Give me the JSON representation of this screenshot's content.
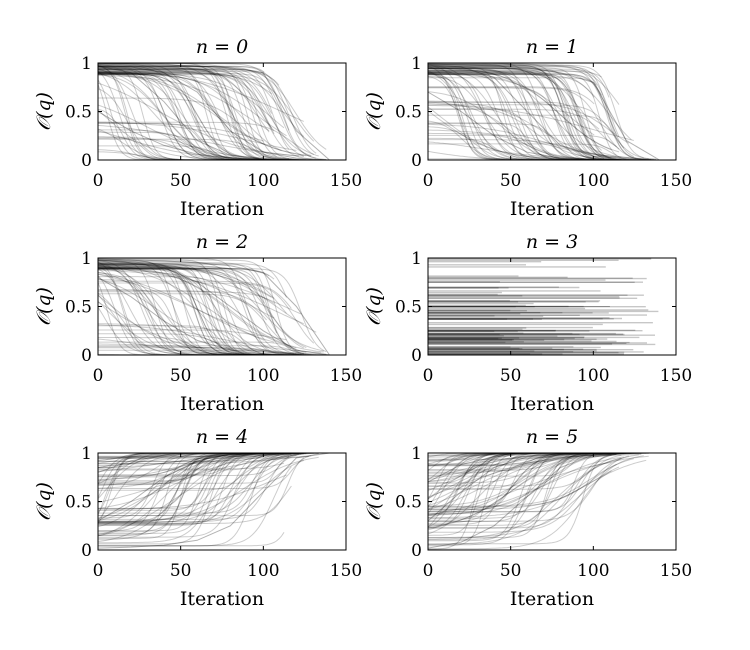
{
  "chart_data": [
    {
      "type": "line",
      "title": "n = 0",
      "xlabel": "Iteration",
      "ylabel": "𝒪(q)",
      "xlim": [
        0,
        150
      ],
      "ylim": [
        0,
        1
      ],
      "xticks": [
        "0",
        "50",
        "100",
        "150"
      ],
      "yticks": [
        "0",
        "0.5",
        "1"
      ],
      "series_style": "many faint black trajectories",
      "series": [
        {
          "x": [
            0,
            20,
            40,
            60,
            80,
            100,
            120,
            140
          ],
          "values": [
            0.98,
            0.96,
            0.9,
            0.7,
            0.3,
            0.08,
            0.02,
            0.0
          ]
        },
        {
          "x": [
            0,
            20,
            40,
            60,
            80,
            100,
            120,
            140
          ],
          "values": [
            0.97,
            0.9,
            0.6,
            0.2,
            0.05,
            0.01,
            0.0,
            0.0
          ]
        },
        {
          "x": [
            0,
            20,
            40,
            60,
            80,
            100,
            120,
            140
          ],
          "values": [
            0.99,
            0.99,
            0.98,
            0.97,
            0.95,
            0.9,
            0.3,
            0.0
          ]
        },
        {
          "x": [
            0,
            20,
            40,
            60,
            80,
            100,
            120,
            140
          ],
          "values": [
            0.5,
            0.3,
            0.15,
            0.06,
            0.02,
            0.0,
            0.0,
            0.0
          ]
        }
      ]
    },
    {
      "type": "line",
      "title": "n = 1",
      "xlabel": "Iteration",
      "ylabel": "𝒪(q)",
      "xlim": [
        0,
        150
      ],
      "ylim": [
        0,
        1
      ],
      "xticks": [
        "0",
        "50",
        "100",
        "150"
      ],
      "yticks": [
        "0",
        "0.5",
        "1"
      ],
      "series_style": "many faint black trajectories",
      "series": [
        {
          "x": [
            0,
            20,
            40,
            60,
            80,
            100,
            120,
            140
          ],
          "values": [
            0.98,
            0.96,
            0.85,
            0.5,
            0.15,
            0.04,
            0.01,
            0.0
          ]
        },
        {
          "x": [
            0,
            20,
            40,
            60,
            80,
            100,
            120,
            140
          ],
          "values": [
            0.99,
            0.98,
            0.97,
            0.95,
            0.9,
            0.8,
            0.2,
            0.0
          ]
        },
        {
          "x": [
            0,
            20,
            40,
            60,
            80,
            100,
            120,
            140
          ],
          "values": [
            0.7,
            0.5,
            0.25,
            0.08,
            0.02,
            0.0,
            0.0,
            0.0
          ]
        }
      ]
    },
    {
      "type": "line",
      "title": "n = 2",
      "xlabel": "Iteration",
      "ylabel": "𝒪(q)",
      "xlim": [
        0,
        150
      ],
      "ylim": [
        0,
        1
      ],
      "xticks": [
        "0",
        "50",
        "100",
        "150"
      ],
      "yticks": [
        "0",
        "0.5",
        "1"
      ],
      "series_style": "many faint black trajectories",
      "series": [
        {
          "x": [
            0,
            20,
            40,
            60,
            80,
            100,
            120,
            140
          ],
          "values": [
            0.98,
            0.95,
            0.9,
            0.75,
            0.5,
            0.25,
            0.05,
            0.0
          ]
        },
        {
          "x": [
            0,
            20,
            40,
            60,
            80,
            100,
            120,
            140
          ],
          "values": [
            0.99,
            0.98,
            0.97,
            0.95,
            0.92,
            0.85,
            0.5,
            0.0
          ]
        },
        {
          "x": [
            0,
            20,
            40,
            60,
            80,
            100,
            120,
            140
          ],
          "values": [
            0.8,
            0.6,
            0.35,
            0.15,
            0.05,
            0.01,
            0.0,
            0.0
          ]
        }
      ]
    },
    {
      "type": "line",
      "title": "n = 3",
      "xlabel": "Iteration",
      "ylabel": "𝒪(q)",
      "xlim": [
        0,
        150
      ],
      "ylim": [
        0,
        1
      ],
      "xticks": [
        "0",
        "50",
        "100",
        "150"
      ],
      "yticks": [
        "0",
        "0.5",
        "1"
      ],
      "series_style": "many faint flat horizontal trajectories",
      "series": [
        {
          "x": [
            0,
            135
          ],
          "values": [
            0.99,
            0.99
          ]
        },
        {
          "x": [
            0,
            125
          ],
          "values": [
            0.75,
            0.75
          ]
        },
        {
          "x": [
            0,
            110
          ],
          "values": [
            0.5,
            0.5
          ]
        },
        {
          "x": [
            0,
            120
          ],
          "values": [
            0.12,
            0.12
          ]
        }
      ]
    },
    {
      "type": "line",
      "title": "n = 4",
      "xlabel": "Iteration",
      "ylabel": "𝒪(q)",
      "xlim": [
        0,
        150
      ],
      "ylim": [
        0,
        1
      ],
      "xticks": [
        "0",
        "50",
        "100",
        "150"
      ],
      "yticks": [
        "0",
        "0.5",
        "1"
      ],
      "series_style": "many faint black trajectories",
      "series": [
        {
          "x": [
            0,
            20,
            40,
            60,
            80,
            100,
            120,
            140
          ],
          "values": [
            0.8,
            0.92,
            0.97,
            0.99,
            1.0,
            1.0,
            1.0,
            1.0
          ]
        },
        {
          "x": [
            0,
            20,
            40,
            60,
            80,
            100,
            120,
            140
          ],
          "values": [
            0.02,
            0.03,
            0.05,
            0.1,
            0.25,
            0.6,
            0.95,
            1.0
          ]
        },
        {
          "x": [
            0,
            20,
            40,
            60,
            80,
            100,
            120,
            140
          ],
          "values": [
            0.3,
            0.5,
            0.75,
            0.92,
            0.99,
            1.0,
            1.0,
            1.0
          ]
        }
      ]
    },
    {
      "type": "line",
      "title": "n = 5",
      "xlabel": "Iteration",
      "ylabel": "𝒪(q)",
      "xlim": [
        0,
        150
      ],
      "ylim": [
        0,
        1
      ],
      "xticks": [
        "0",
        "50",
        "100",
        "150"
      ],
      "yticks": [
        "0",
        "0.5",
        "1"
      ],
      "series_style": "many faint black trajectories",
      "series": [
        {
          "x": [
            0,
            20,
            40,
            60,
            80,
            100,
            120,
            140
          ],
          "values": [
            0.7,
            0.88,
            0.96,
            0.99,
            1.0,
            1.0,
            1.0,
            1.0
          ]
        },
        {
          "x": [
            0,
            20,
            40,
            60,
            80,
            100,
            120,
            140
          ],
          "values": [
            0.02,
            0.08,
            0.25,
            0.55,
            0.85,
            0.98,
            1.0,
            1.0
          ]
        },
        {
          "x": [
            0,
            20,
            40,
            60,
            80,
            100,
            120,
            140
          ],
          "values": [
            0.3,
            0.6,
            0.85,
            0.96,
            0.99,
            1.0,
            1.0,
            1.0
          ]
        }
      ]
    }
  ],
  "colors": {
    "line": "#000000",
    "axis": "#000000",
    "background": "#ffffff"
  }
}
